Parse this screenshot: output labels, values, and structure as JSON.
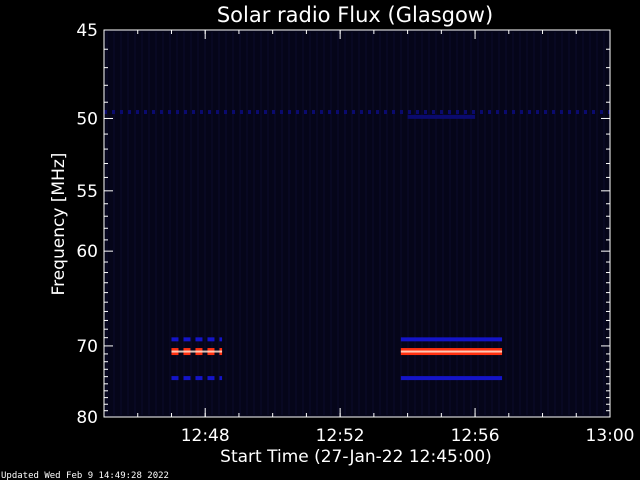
{
  "chart_data": {
    "type": "heatmap",
    "title": "Solar radio Flux (Glasgow)",
    "xlabel": "Start Time (27-Jan-22 12:45:00)",
    "ylabel": "Frequency [MHz]",
    "x_unit": "time (HH:MM)",
    "xlim": [
      "12:45",
      "13:00"
    ],
    "ylim": [
      45,
      80
    ],
    "x_ticks": [
      "12:48",
      "12:52",
      "12:56",
      "13:00"
    ],
    "y_ticks": [
      45,
      50,
      55,
      60,
      70,
      80
    ],
    "background_color": "#050519",
    "colors": {
      "low": "#0a0a6e",
      "mid": "#1414c8",
      "high": "#ff3010",
      "peak": "#ffe0d0"
    },
    "features": [
      {
        "kind": "band",
        "freq_mhz": 49.6,
        "start": "12:45",
        "end": "13:00",
        "intensity": "low",
        "dashed": true
      },
      {
        "kind": "band",
        "freq_mhz": 49.9,
        "start": "12:54",
        "end": "12:56",
        "intensity": "low",
        "dashed": false
      },
      {
        "kind": "band",
        "freq_mhz": 69.2,
        "start": "12:47",
        "end": "12:48.5",
        "intensity": "mid",
        "dashed": true
      },
      {
        "kind": "band",
        "freq_mhz": 70.7,
        "start": "12:47",
        "end": "12:48.5",
        "intensity": "high",
        "dashed": true
      },
      {
        "kind": "band",
        "freq_mhz": 74.2,
        "start": "12:47",
        "end": "12:48.5",
        "intensity": "mid",
        "dashed": true
      },
      {
        "kind": "band",
        "freq_mhz": 69.2,
        "start": "12:53.8",
        "end": "12:56.8",
        "intensity": "mid",
        "dashed": false
      },
      {
        "kind": "band",
        "freq_mhz": 70.7,
        "start": "12:53.8",
        "end": "12:56.8",
        "intensity": "high",
        "dashed": false
      },
      {
        "kind": "band",
        "freq_mhz": 74.2,
        "start": "12:53.8",
        "end": "12:56.8",
        "intensity": "mid",
        "dashed": false
      }
    ]
  },
  "footer": {
    "updated": "Updated Wed Feb  9 14:49:28 2022"
  }
}
